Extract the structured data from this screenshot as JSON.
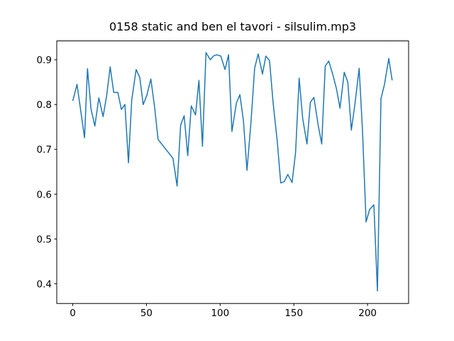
{
  "chart_data": {
    "type": "line",
    "title": "0158 static and ben el tavori - silsulim.mp3",
    "x": [
      0,
      2.9,
      8,
      10,
      12.4,
      15,
      17.7,
      20.6,
      23,
      25.4,
      27.8,
      30.6,
      33,
      35.4,
      37.8,
      40,
      43,
      45.5,
      47.8,
      50.2,
      53,
      55.5,
      57.9,
      60.8,
      63.2,
      65.6,
      68,
      70.8,
      73.2,
      75.6,
      78,
      80.4,
      83.3,
      85.6,
      88,
      90.4,
      93.3,
      95.7,
      98,
      100.5,
      103.3,
      105.7,
      108,
      111,
      113.4,
      115.8,
      118.2,
      121,
      123.4,
      125.8,
      128.7,
      131,
      133.5,
      135.9,
      138.8,
      141.1,
      143.5,
      145.9,
      148.8,
      151.2,
      153.6,
      156,
      158.9,
      161.2,
      163.6,
      166.5,
      168.9,
      171.3,
      173.7,
      176.6,
      179,
      181.3,
      184.2,
      186.6,
      189,
      191.4,
      194.3,
      196.6,
      199,
      201.4,
      204.3,
      206.7,
      209.1,
      211.5,
      214.4,
      216.7
    ],
    "series": [
      {
        "color": "#1f77b4",
        "values": [
          0.808,
          0.845,
          0.726,
          0.88,
          0.79,
          0.752,
          0.815,
          0.773,
          0.82,
          0.884,
          0.827,
          0.827,
          0.789,
          0.8,
          0.67,
          0.81,
          0.878,
          0.86,
          0.8,
          0.82,
          0.857,
          0.795,
          0.722,
          0.71,
          0.7,
          0.69,
          0.68,
          0.618,
          0.754,
          0.775,
          0.686,
          0.797,
          0.777,
          0.854,
          0.707,
          0.916,
          0.9,
          0.909,
          0.911,
          0.908,
          0.878,
          0.911,
          0.74,
          0.803,
          0.822,
          0.764,
          0.653,
          0.764,
          0.881,
          0.913,
          0.868,
          0.908,
          0.898,
          0.805,
          0.716,
          0.625,
          0.628,
          0.644,
          0.626,
          0.694,
          0.859,
          0.769,
          0.712,
          0.805,
          0.816,
          0.754,
          0.712,
          0.886,
          0.897,
          0.865,
          0.834,
          0.792,
          0.872,
          0.85,
          0.743,
          0.8,
          0.881,
          0.74,
          0.538,
          0.566,
          0.576,
          0.384,
          0.813,
          0.845,
          0.903,
          0.854
        ]
      }
    ],
    "xlim": [
      -10.85,
      227.85
    ],
    "xticks": [
      0,
      50,
      100,
      150,
      200
    ],
    "ylim": [
      0.356,
      0.942
    ],
    "yticks": [
      0.4,
      0.5,
      0.6,
      0.7,
      0.8,
      0.9
    ]
  }
}
